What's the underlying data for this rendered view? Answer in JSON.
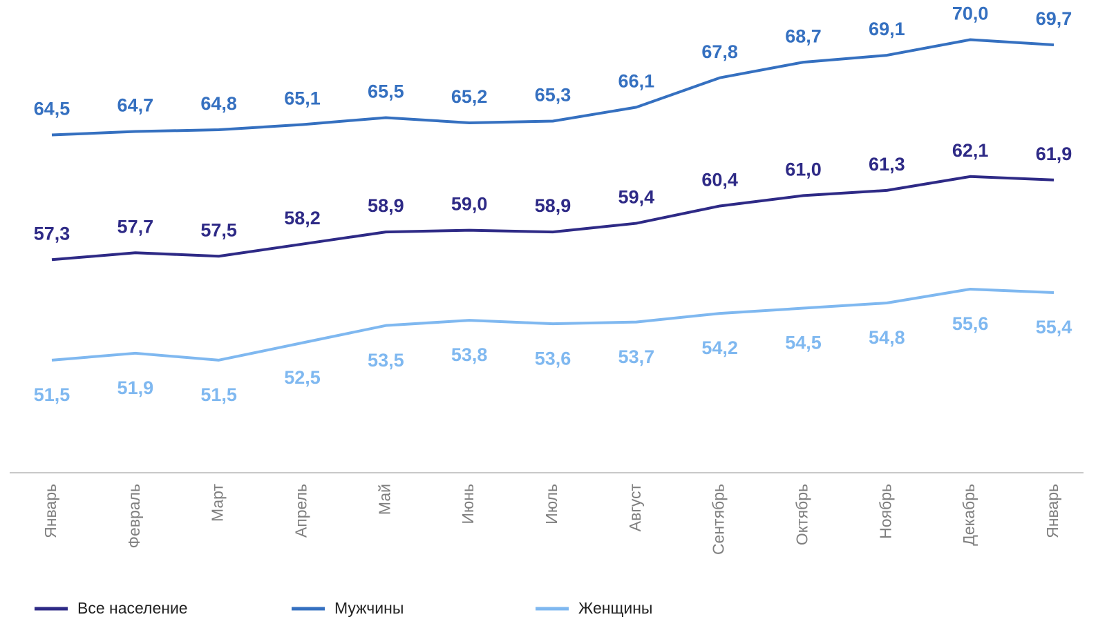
{
  "chart_data": {
    "type": "line",
    "categories": [
      "Январь",
      "Февраль",
      "Март",
      "Апрель",
      "Май",
      "Июнь",
      "Июль",
      "Август",
      "Сентябрь",
      "Октябрь",
      "Ноябрь",
      "Декабрь",
      "Январь"
    ],
    "series": [
      {
        "name": "Все население",
        "color": "#2e2a86",
        "values": [
          57.3,
          57.7,
          57.5,
          58.2,
          58.9,
          59.0,
          58.9,
          59.4,
          60.4,
          61.0,
          61.3,
          62.1,
          61.9
        ],
        "value_labels": [
          "57,3",
          "57,7",
          "57,5",
          "58,2",
          "58,9",
          "59,0",
          "58,9",
          "59,4",
          "60,4",
          "61,0",
          "61,3",
          "62,1",
          "61,9"
        ]
      },
      {
        "name": "Мужчины",
        "color": "#3570c0",
        "values": [
          64.5,
          64.7,
          64.8,
          65.1,
          65.5,
          65.2,
          65.3,
          66.1,
          67.8,
          68.7,
          69.1,
          70.0,
          69.7
        ],
        "value_labels": [
          "64,5",
          "64,7",
          "64,8",
          "65,1",
          "65,5",
          "65,2",
          "65,3",
          "66,1",
          "67,8",
          "68,7",
          "69,1",
          "70,0",
          "69,7"
        ]
      },
      {
        "name": "Женщины",
        "color": "#7fb8f0",
        "values": [
          51.5,
          51.9,
          51.5,
          52.5,
          53.5,
          53.8,
          53.6,
          53.7,
          54.2,
          54.5,
          54.8,
          55.6,
          55.4
        ],
        "value_labels": [
          "51,5",
          "51,9",
          "51,5",
          "52,5",
          "53,5",
          "53,8",
          "53,6",
          "53,7",
          "54,2",
          "54,5",
          "54,8",
          "55,6",
          "55,4"
        ]
      }
    ],
    "ylim": [
      45,
      72
    ],
    "legend": "bottom"
  }
}
